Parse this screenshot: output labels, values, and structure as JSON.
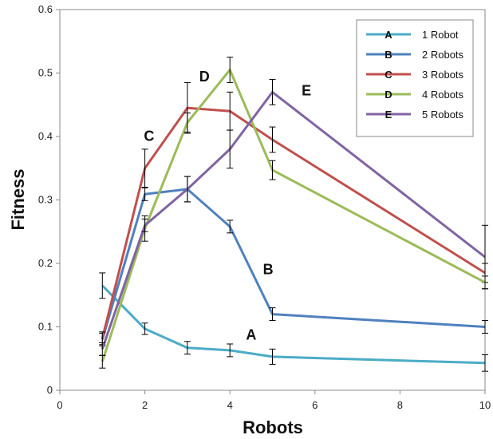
{
  "chart_data": {
    "type": "line",
    "title": "",
    "xlabel": "Robots",
    "ylabel": "Fitness",
    "xlim": [
      0,
      10
    ],
    "ylim": [
      0,
      0.6
    ],
    "xticks": [
      "0",
      "2",
      "4",
      "6",
      "8",
      "10"
    ],
    "yticks": [
      "0",
      "0.1",
      "0.2",
      "0.3",
      "0.4",
      "0.5",
      "0.6"
    ],
    "grid": false,
    "legend_position": "top-right",
    "series": [
      {
        "name": "1 Robot",
        "marker": "A",
        "color": "#4bacc6",
        "x": [
          1,
          2,
          3,
          4,
          5,
          10
        ],
        "y": [
          0.165,
          0.097,
          0.067,
          0.063,
          0.053,
          0.043
        ],
        "err": [
          0.02,
          0.009,
          0.01,
          0.01,
          0.012,
          0.013
        ]
      },
      {
        "name": "2 Robots",
        "marker": "B",
        "color": "#4f81bd",
        "x": [
          1,
          2,
          3,
          4,
          5,
          10
        ],
        "y": [
          0.08,
          0.309,
          0.317,
          0.258,
          0.12,
          0.1
        ],
        "err": [
          0.01,
          0.01,
          0.02,
          0.01,
          0.01,
          0.01
        ]
      },
      {
        "name": "3 Robots",
        "marker": "C",
        "color": "#c0504d",
        "x": [
          1,
          2,
          3,
          4,
          5,
          10
        ],
        "y": [
          0.082,
          0.35,
          0.445,
          0.44,
          0.395,
          0.185
        ],
        "err": [
          0.01,
          0.03,
          0.04,
          0.03,
          0.02,
          0.015
        ]
      },
      {
        "name": "4 Robots",
        "marker": "D",
        "color": "#9bbb59",
        "x": [
          1,
          2,
          3,
          4,
          5,
          10
        ],
        "y": [
          0.045,
          0.255,
          0.422,
          0.505,
          0.347,
          0.17
        ],
        "err": [
          0.01,
          0.02,
          0.015,
          0.02,
          0.015,
          0.01
        ]
      },
      {
        "name": "5 Robots",
        "marker": "E",
        "color": "#8064a2",
        "x": [
          1,
          2,
          3,
          4,
          5,
          10
        ],
        "y": [
          0.065,
          0.26,
          0.317,
          0.38,
          0.47,
          0.21
        ],
        "err": [
          0.01,
          0.01,
          0.02,
          0.03,
          0.02,
          0.05
        ]
      }
    ],
    "annotations": [
      {
        "text": "A",
        "x": 4.5,
        "y": 0.08
      },
      {
        "text": "B",
        "x": 4.9,
        "y": 0.183
      },
      {
        "text": "C",
        "x": 2.1,
        "y": 0.393
      },
      {
        "text": "D",
        "x": 3.4,
        "y": 0.487
      },
      {
        "text": "E",
        "x": 5.8,
        "y": 0.465
      }
    ]
  }
}
